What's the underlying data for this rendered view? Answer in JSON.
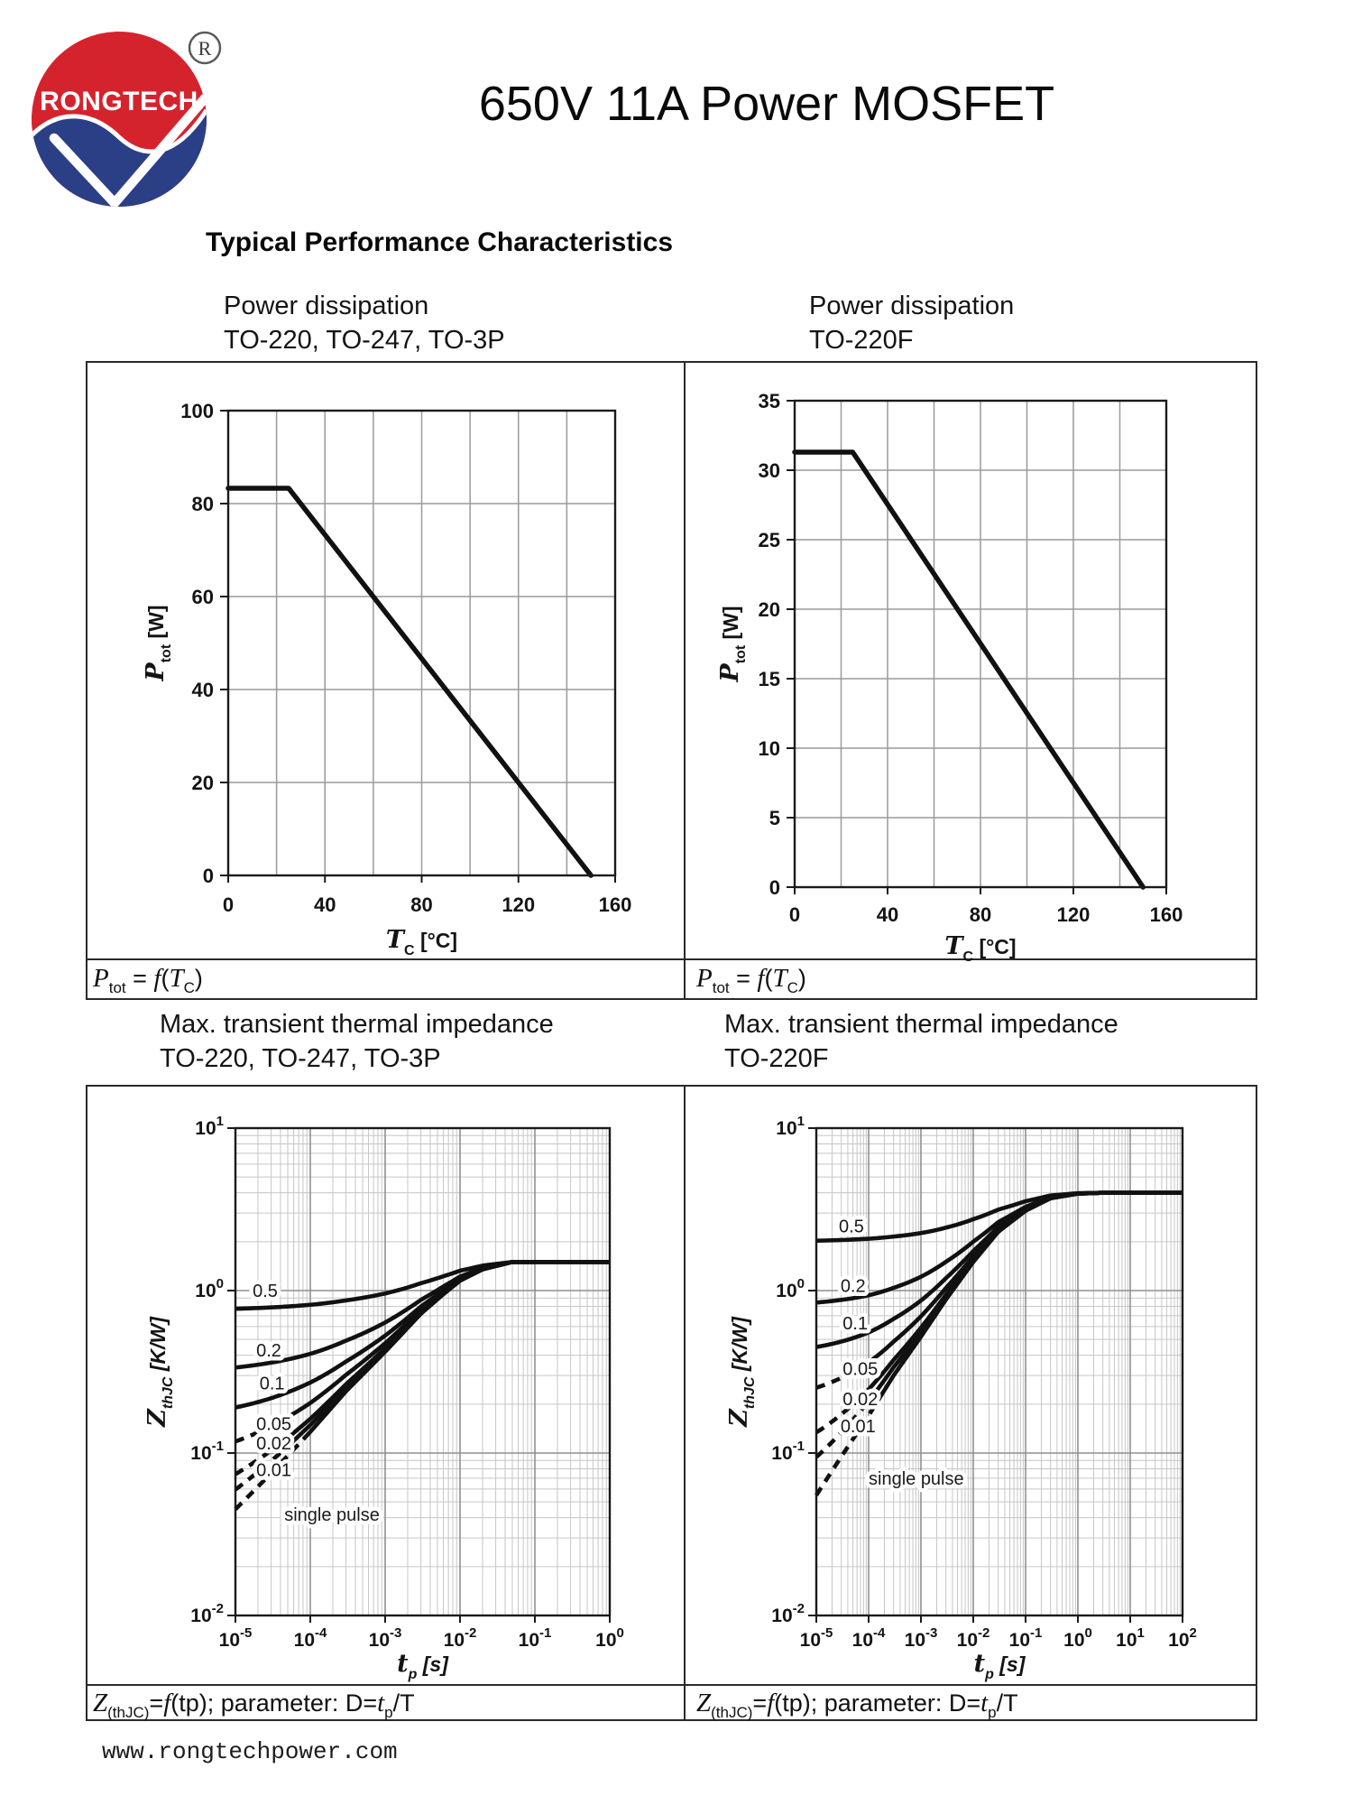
{
  "page": {
    "title": "650V 11A Power MOSFET",
    "section_heading": "Typical Performance Characteristics",
    "footer": "www.rongtechpower.com",
    "logo": {
      "brand": "RONGTECH",
      "registered": "R"
    },
    "colors": {
      "logo_red": "#d5232e",
      "logo_blue": "#2b3f87",
      "curve": "#111111",
      "grid_major": "#8f8f8f",
      "grid_minor": "#c6c6c6"
    }
  },
  "panels": [
    {
      "id": "pd1",
      "heading1": "Power dissipation",
      "heading2": "TO-220, TO-247, TO-3P",
      "caption": [
        {
          "t": "P",
          "s": "var"
        },
        {
          "t": "tot",
          "s": "sub"
        },
        {
          "t": " = ",
          "s": "n"
        },
        {
          "t": "f",
          "s": "var"
        },
        {
          "t": "(",
          "s": "n"
        },
        {
          "t": "T",
          "s": "var"
        },
        {
          "t": "C",
          "s": "sub"
        },
        {
          "t": ")",
          "s": "n"
        }
      ]
    },
    {
      "id": "pd2",
      "heading1": "Power dissipation",
      "heading2": "TO-220F",
      "caption": [
        {
          "t": "P",
          "s": "var"
        },
        {
          "t": "tot",
          "s": "sub"
        },
        {
          "t": " = ",
          "s": "n"
        },
        {
          "t": "f",
          "s": "var"
        },
        {
          "t": "(",
          "s": "n"
        },
        {
          "t": "T",
          "s": "var"
        },
        {
          "t": "C",
          "s": "sub"
        },
        {
          "t": ")",
          "s": "n"
        }
      ]
    },
    {
      "id": "zth1",
      "heading1": "Max. transient thermal impedance",
      "heading2": "TO-220, TO-247, TO-3P",
      "caption": [
        {
          "t": "Z",
          "s": "var"
        },
        {
          "t": "(thJC)",
          "s": "sub"
        },
        {
          "t": "=",
          "s": "n"
        },
        {
          "t": "f",
          "s": "var"
        },
        {
          "t": "(tp); parameter: D=",
          "s": "n"
        },
        {
          "t": "t",
          "s": "var"
        },
        {
          "t": "p",
          "s": "sub"
        },
        {
          "t": "/T",
          "s": "n"
        }
      ]
    },
    {
      "id": "zth2",
      "heading1": "Max. transient thermal impedance",
      "heading2": "TO-220F",
      "caption": [
        {
          "t": "Z",
          "s": "var"
        },
        {
          "t": "(thJC)",
          "s": "sub"
        },
        {
          "t": "=",
          "s": "n"
        },
        {
          "t": "f",
          "s": "var"
        },
        {
          "t": "(tp); parameter: D=",
          "s": "n"
        },
        {
          "t": "t",
          "s": "var"
        },
        {
          "t": "p",
          "s": "sub"
        },
        {
          "t": "/T",
          "s": "n"
        }
      ]
    }
  ],
  "chart_data": [
    {
      "id": "pd1",
      "type": "line",
      "title": "Power dissipation TO-220, TO-247, TO-3P",
      "xlabel": {
        "sym": "T",
        "sub": "C",
        "unit": " [°C]"
      },
      "ylabel": {
        "sym": "P",
        "sub": "tot",
        "unit": " [W]"
      },
      "xlim": [
        0,
        160
      ],
      "ylim": [
        0,
        100
      ],
      "x_ticks": [
        0,
        40,
        80,
        120,
        160
      ],
      "x_grid_step": 20,
      "y_ticks": [
        0,
        20,
        40,
        60,
        80,
        100
      ],
      "y_grid_step": 20,
      "grid": true,
      "series": [
        {
          "name": "Ptot",
          "points": [
            [
              0,
              83.3
            ],
            [
              25,
              83.3
            ],
            [
              150,
              0
            ]
          ]
        }
      ]
    },
    {
      "id": "pd2",
      "type": "line",
      "title": "Power dissipation TO-220F",
      "xlabel": {
        "sym": "T",
        "sub": "C",
        "unit": " [°C]"
      },
      "ylabel": {
        "sym": "P",
        "sub": "tot",
        "unit": " [W]"
      },
      "xlim": [
        0,
        160
      ],
      "ylim": [
        0,
        35
      ],
      "x_ticks": [
        0,
        40,
        80,
        120,
        160
      ],
      "x_grid_step": 20,
      "y_ticks": [
        0,
        5,
        10,
        15,
        20,
        25,
        30,
        35
      ],
      "y_grid_step": 5,
      "grid": true,
      "series": [
        {
          "name": "Ptot",
          "points": [
            [
              0,
              31.3
            ],
            [
              25,
              31.3
            ],
            [
              150,
              0
            ]
          ]
        }
      ]
    },
    {
      "id": "zth1",
      "type": "loglog",
      "title": "Max. transient thermal impedance TO-220, TO-247, TO-3P",
      "xlabel": {
        "sym": "t",
        "sub": "p",
        "unit": " [s]"
      },
      "ylabel": {
        "sym": "Z",
        "sub": "thJC",
        "unit": " [K/W]"
      },
      "x_exponents": [
        -5,
        -4,
        -3,
        -2,
        -1,
        0
      ],
      "y_exponents": [
        -2,
        -1,
        0,
        1
      ],
      "parameter": "D=tp/T",
      "rth_kw": 1.5,
      "single_pulse_anchors": [
        [
          1e-05,
          0.045
        ],
        [
          3e-05,
          0.075
        ],
        [
          0.0001,
          0.135
        ],
        [
          0.0003,
          0.24
        ],
        [
          0.001,
          0.42
        ],
        [
          0.003,
          0.72
        ],
        [
          0.006,
          0.95
        ],
        [
          0.01,
          1.15
        ],
        [
          0.02,
          1.35
        ],
        [
          0.05,
          1.5
        ],
        [
          1,
          1.5
        ]
      ],
      "series": [
        {
          "label": "0.5",
          "D": 0.5
        },
        {
          "label": "0.2",
          "D": 0.2
        },
        {
          "label": "0.1",
          "D": 0.1
        },
        {
          "label": "0.05",
          "D": 0.05,
          "dash_until_s": 3e-05
        },
        {
          "label": "0.02",
          "D": 0.02,
          "dash_until_s": 4e-05
        },
        {
          "label": "0.01",
          "D": 0.01,
          "dash_until_s": 5e-05
        },
        {
          "label": "single pulse",
          "D": 0,
          "dash_until_s": 8e-05
        }
      ],
      "curve_labels": [
        {
          "text": "0.5",
          "t": 1.7e-05,
          "z": 1.0
        },
        {
          "text": "0.2",
          "t": 1.9e-05,
          "z": 0.43
        },
        {
          "text": "0.1",
          "t": 2.1e-05,
          "z": 0.27
        },
        {
          "text": "0.05",
          "t": 1.9e-05,
          "z": 0.152
        },
        {
          "text": "0.02",
          "t": 1.9e-05,
          "z": 0.115
        },
        {
          "text": "0.01",
          "t": 1.9e-05,
          "z": 0.079
        },
        {
          "text": "single pulse",
          "t": 4.5e-05,
          "z": 0.042
        }
      ]
    },
    {
      "id": "zth2",
      "type": "loglog",
      "title": "Max. transient thermal impedance TO-220F",
      "xlabel": {
        "sym": "t",
        "sub": "p",
        "unit": " [s]"
      },
      "ylabel": {
        "sym": "Z",
        "sub": "thJC",
        "unit": " [K/W]"
      },
      "x_exponents": [
        -5,
        -4,
        -3,
        -2,
        -1,
        0,
        1,
        2
      ],
      "y_exponents": [
        -2,
        -1,
        0,
        1
      ],
      "parameter": "D=tp/T",
      "rth_kw": 4.0,
      "single_pulse_anchors": [
        [
          1e-05,
          0.055
        ],
        [
          3e-05,
          0.095
        ],
        [
          0.0001,
          0.17
        ],
        [
          0.0003,
          0.3
        ],
        [
          0.001,
          0.52
        ],
        [
          0.003,
          0.88
        ],
        [
          0.01,
          1.5
        ],
        [
          0.03,
          2.3
        ],
        [
          0.1,
          3.1
        ],
        [
          0.3,
          3.7
        ],
        [
          1,
          3.95
        ],
        [
          3,
          4.0
        ],
        [
          100,
          4.0
        ]
      ],
      "series": [
        {
          "label": "0.5",
          "D": 0.5
        },
        {
          "label": "0.2",
          "D": 0.2
        },
        {
          "label": "0.1",
          "D": 0.1
        },
        {
          "label": "0.05",
          "D": 0.05,
          "dash_until_s": 4e-05
        },
        {
          "label": "0.02",
          "D": 0.02,
          "dash_until_s": 5e-05
        },
        {
          "label": "0.01",
          "D": 0.01,
          "dash_until_s": 7e-05
        },
        {
          "label": "single pulse",
          "D": 0,
          "dash_until_s": 0.00015
        }
      ],
      "curve_labels": [
        {
          "text": "0.5",
          "t": 2.7e-05,
          "z": 2.5
        },
        {
          "text": "0.2",
          "t": 2.9e-05,
          "z": 1.07
        },
        {
          "text": "0.1",
          "t": 3.2e-05,
          "z": 0.63
        },
        {
          "text": "0.05",
          "t": 3.2e-05,
          "z": 0.33
        },
        {
          "text": "0.02",
          "t": 3.2e-05,
          "z": 0.215
        },
        {
          "text": "0.01",
          "t": 2.9e-05,
          "z": 0.147
        },
        {
          "text": "single pulse",
          "t": 0.0001,
          "z": 0.07
        }
      ]
    }
  ]
}
